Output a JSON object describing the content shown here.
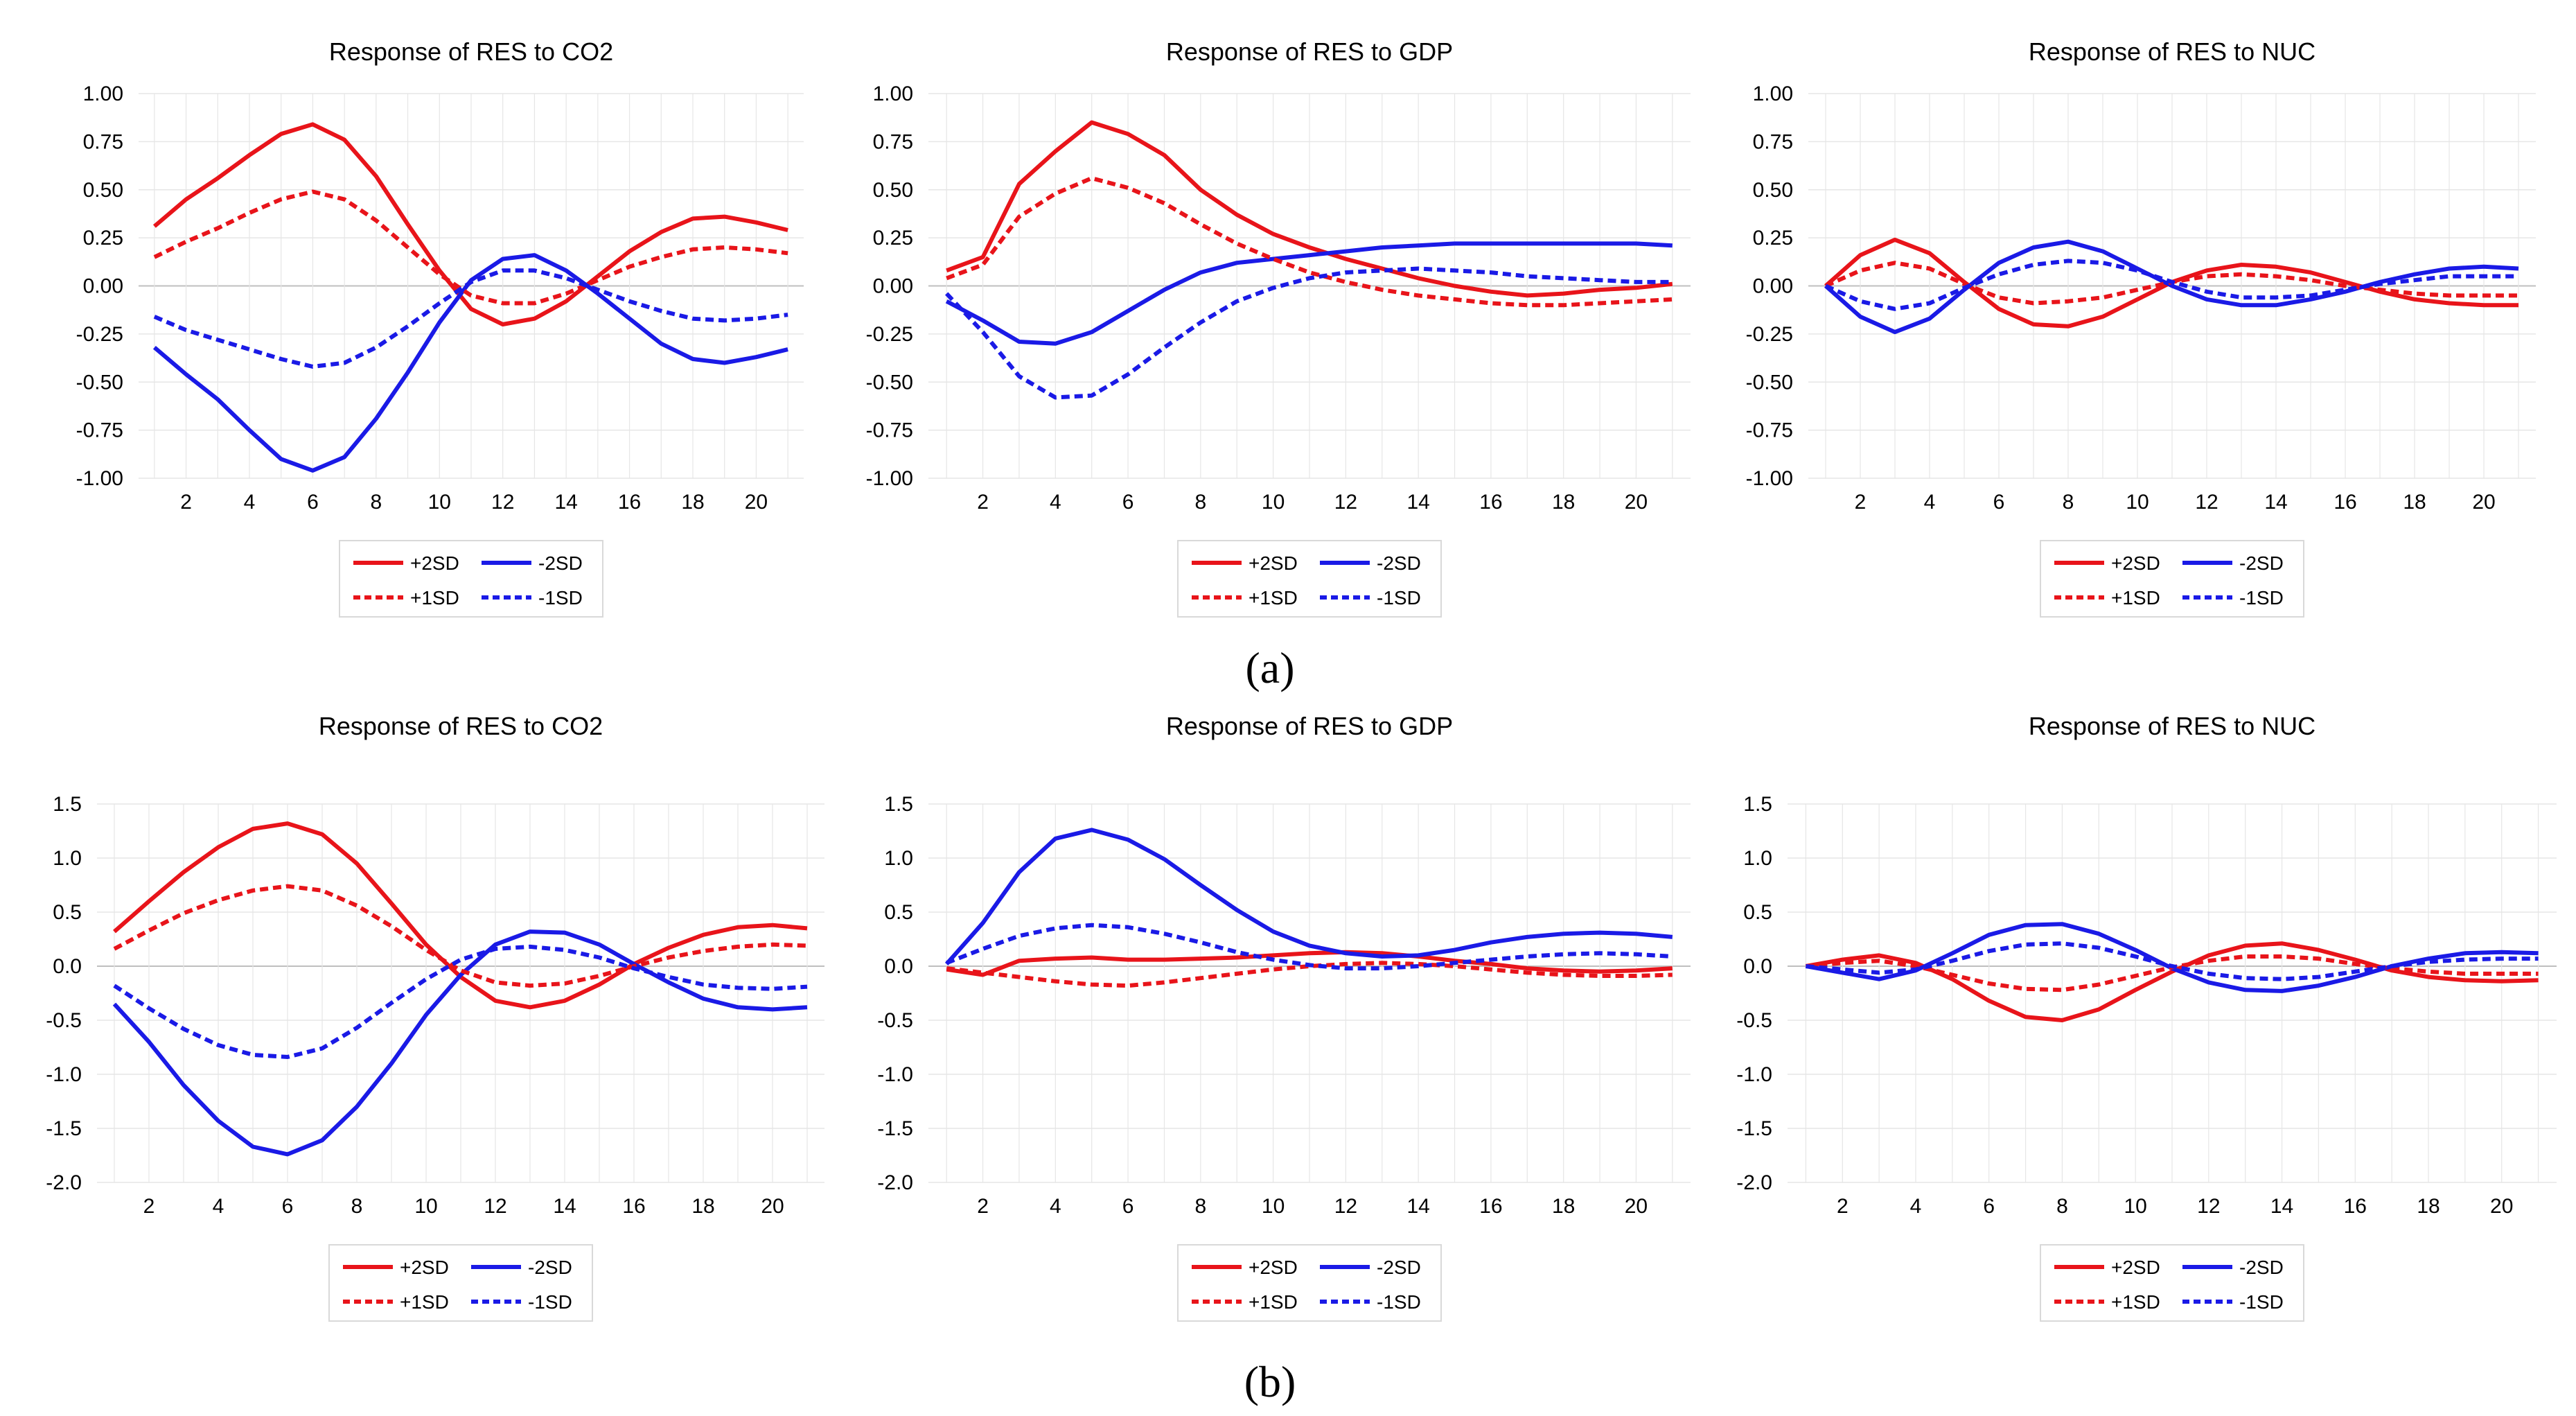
{
  "figure": {
    "panel_labels": [
      "(a)",
      "(b)"
    ]
  },
  "colors": {
    "positive": "#e8141a",
    "negative": "#1a1ae6",
    "grid": "#e6e6e6",
    "zero_line": "#bfbfbf",
    "legend_border": "#d9d9d9"
  },
  "chart_data": [
    {
      "id": "a1",
      "type": "line",
      "panel": "(a)",
      "title": "Response of RES to CO2",
      "ylim": [
        -1.0,
        1.0
      ],
      "yticks": [
        1.0,
        0.75,
        0.5,
        0.25,
        0.0,
        -0.25,
        -0.5,
        -0.75,
        -1.0
      ],
      "ytick_labels": [
        "1.00",
        "0.75",
        "0.50",
        "0.25",
        "0.00",
        "-0.25",
        "-0.50",
        "-0.75",
        "-1.00"
      ],
      "xlim": [
        1,
        21
      ],
      "xtick_labels": [
        "2",
        "4",
        "6",
        "8",
        "10",
        "12",
        "14",
        "16",
        "18",
        "20"
      ],
      "x": [
        1,
        2,
        3,
        4,
        5,
        6,
        7,
        8,
        9,
        10,
        11,
        12,
        13,
        14,
        15,
        16,
        17,
        18,
        19,
        20,
        21
      ],
      "series": [
        {
          "name": "+2SD",
          "color": "#e8141a",
          "dash": "solid",
          "values": [
            0.31,
            0.45,
            0.56,
            0.68,
            0.79,
            0.84,
            0.76,
            0.57,
            0.32,
            0.08,
            -0.12,
            -0.2,
            -0.17,
            -0.08,
            0.05,
            0.18,
            0.28,
            0.35,
            0.36,
            0.33,
            0.29
          ]
        },
        {
          "name": "-2SD",
          "color": "#1a1ae6",
          "dash": "solid",
          "values": [
            -0.32,
            -0.46,
            -0.59,
            -0.75,
            -0.9,
            -0.96,
            -0.89,
            -0.69,
            -0.45,
            -0.19,
            0.03,
            0.14,
            0.16,
            0.08,
            -0.04,
            -0.17,
            -0.3,
            -0.38,
            -0.4,
            -0.37,
            -0.33
          ]
        },
        {
          "name": "+1SD",
          "color": "#e8141a",
          "dash": "dashed",
          "values": [
            0.15,
            0.23,
            0.3,
            0.38,
            0.45,
            0.49,
            0.45,
            0.34,
            0.2,
            0.06,
            -0.05,
            -0.09,
            -0.09,
            -0.04,
            0.03,
            0.1,
            0.15,
            0.19,
            0.2,
            0.19,
            0.17
          ]
        },
        {
          "name": "-1SD",
          "color": "#1a1ae6",
          "dash": "dashed",
          "values": [
            -0.16,
            -0.23,
            -0.28,
            -0.33,
            -0.38,
            -0.42,
            -0.4,
            -0.32,
            -0.21,
            -0.09,
            0.02,
            0.08,
            0.08,
            0.04,
            -0.02,
            -0.08,
            -0.13,
            -0.17,
            -0.18,
            -0.17,
            -0.15
          ]
        }
      ]
    },
    {
      "id": "a2",
      "type": "line",
      "panel": "(a)",
      "title": "Response of RES to GDP",
      "ylim": [
        -1.0,
        1.0
      ],
      "yticks": [
        1.0,
        0.75,
        0.5,
        0.25,
        0.0,
        -0.25,
        -0.5,
        -0.75,
        -1.0
      ],
      "ytick_labels": [
        "1.00",
        "0.75",
        "0.50",
        "0.25",
        "0.00",
        "-0.25",
        "-0.50",
        "-0.75",
        "-1.00"
      ],
      "xlim": [
        1,
        21
      ],
      "xtick_labels": [
        "2",
        "4",
        "6",
        "8",
        "10",
        "12",
        "14",
        "16",
        "18",
        "20"
      ],
      "x": [
        1,
        2,
        3,
        4,
        5,
        6,
        7,
        8,
        9,
        10,
        11,
        12,
        13,
        14,
        15,
        16,
        17,
        18,
        19,
        20,
        21
      ],
      "series": [
        {
          "name": "+2SD",
          "color": "#e8141a",
          "dash": "solid",
          "values": [
            0.08,
            0.15,
            0.53,
            0.7,
            0.85,
            0.79,
            0.68,
            0.5,
            0.37,
            0.27,
            0.2,
            0.14,
            0.09,
            0.04,
            0.0,
            -0.03,
            -0.05,
            -0.04,
            -0.02,
            -0.01,
            0.01
          ]
        },
        {
          "name": "-2SD",
          "color": "#1a1ae6",
          "dash": "solid",
          "values": [
            -0.08,
            -0.18,
            -0.29,
            -0.3,
            -0.24,
            -0.13,
            -0.02,
            0.07,
            0.12,
            0.14,
            0.16,
            0.18,
            0.2,
            0.21,
            0.22,
            0.22,
            0.22,
            0.22,
            0.22,
            0.22,
            0.21
          ]
        },
        {
          "name": "+1SD",
          "color": "#e8141a",
          "dash": "dashed",
          "values": [
            0.04,
            0.11,
            0.36,
            0.48,
            0.56,
            0.51,
            0.43,
            0.32,
            0.22,
            0.14,
            0.07,
            0.02,
            -0.02,
            -0.05,
            -0.07,
            -0.09,
            -0.1,
            -0.1,
            -0.09,
            -0.08,
            -0.07
          ]
        },
        {
          "name": "-1SD",
          "color": "#1a1ae6",
          "dash": "dashed",
          "values": [
            -0.04,
            -0.24,
            -0.47,
            -0.58,
            -0.57,
            -0.46,
            -0.32,
            -0.19,
            -0.08,
            -0.01,
            0.04,
            0.07,
            0.08,
            0.09,
            0.08,
            0.07,
            0.05,
            0.04,
            0.03,
            0.02,
            0.02
          ]
        }
      ]
    },
    {
      "id": "a3",
      "type": "line",
      "panel": "(a)",
      "title": "Response of RES to NUC",
      "ylim": [
        -1.0,
        1.0
      ],
      "yticks": [
        1.0,
        0.75,
        0.5,
        0.25,
        0.0,
        -0.25,
        -0.5,
        -0.75,
        -1.0
      ],
      "ytick_labels": [
        "1.00",
        "0.75",
        "0.50",
        "0.25",
        "0.00",
        "-0.25",
        "-0.50",
        "-0.75",
        "-1.00"
      ],
      "xlim": [
        1,
        21
      ],
      "xtick_labels": [
        "2",
        "4",
        "6",
        "8",
        "10",
        "12",
        "14",
        "16",
        "18",
        "20"
      ],
      "x": [
        1,
        2,
        3,
        4,
        5,
        6,
        7,
        8,
        9,
        10,
        11,
        12,
        13,
        14,
        15,
        16,
        17,
        18,
        19,
        20,
        21
      ],
      "series": [
        {
          "name": "+2SD",
          "color": "#e8141a",
          "dash": "solid",
          "values": [
            0.0,
            0.16,
            0.24,
            0.17,
            0.02,
            -0.12,
            -0.2,
            -0.21,
            -0.16,
            -0.07,
            0.02,
            0.08,
            0.11,
            0.1,
            0.07,
            0.02,
            -0.03,
            -0.07,
            -0.09,
            -0.1,
            -0.1
          ]
        },
        {
          "name": "-2SD",
          "color": "#1a1ae6",
          "dash": "solid",
          "values": [
            0.0,
            -0.16,
            -0.24,
            -0.17,
            -0.02,
            0.12,
            0.2,
            0.23,
            0.18,
            0.09,
            0.0,
            -0.07,
            -0.1,
            -0.1,
            -0.07,
            -0.03,
            0.02,
            0.06,
            0.09,
            0.1,
            0.09
          ]
        },
        {
          "name": "+1SD",
          "color": "#e8141a",
          "dash": "dashed",
          "values": [
            0.0,
            0.08,
            0.12,
            0.09,
            0.01,
            -0.06,
            -0.09,
            -0.08,
            -0.06,
            -0.02,
            0.02,
            0.05,
            0.06,
            0.05,
            0.03,
            0.0,
            -0.02,
            -0.04,
            -0.05,
            -0.05,
            -0.05
          ]
        },
        {
          "name": "-1SD",
          "color": "#1a1ae6",
          "dash": "dashed",
          "values": [
            0.0,
            -0.08,
            -0.12,
            -0.09,
            -0.01,
            0.06,
            0.11,
            0.13,
            0.12,
            0.08,
            0.02,
            -0.03,
            -0.06,
            -0.06,
            -0.05,
            -0.02,
            0.01,
            0.03,
            0.05,
            0.05,
            0.05
          ]
        }
      ]
    },
    {
      "id": "b1",
      "type": "line",
      "panel": "(b)",
      "title": "Response of RES to CO2",
      "ylim": [
        -2.0,
        1.5
      ],
      "yticks": [
        1.5,
        1.0,
        0.5,
        0.0,
        -0.5,
        -1.0,
        -1.5,
        -2.0
      ],
      "ytick_labels": [
        "1.5",
        "1.0",
        "0.5",
        "0.0",
        "-0.5",
        "-1.0",
        "-1.5",
        "-2.0"
      ],
      "xlim": [
        1,
        21
      ],
      "xtick_labels": [
        "2",
        "4",
        "6",
        "8",
        "10",
        "12",
        "14",
        "16",
        "18",
        "20"
      ],
      "x": [
        1,
        2,
        3,
        4,
        5,
        6,
        7,
        8,
        9,
        10,
        11,
        12,
        13,
        14,
        15,
        16,
        17,
        18,
        19,
        20,
        21
      ],
      "series": [
        {
          "name": "+2SD",
          "color": "#e8141a",
          "dash": "solid",
          "values": [
            0.32,
            0.6,
            0.87,
            1.1,
            1.27,
            1.32,
            1.22,
            0.95,
            0.58,
            0.2,
            -0.1,
            -0.32,
            -0.38,
            -0.32,
            -0.17,
            0.02,
            0.17,
            0.29,
            0.36,
            0.38,
            0.35
          ]
        },
        {
          "name": "-2SD",
          "color": "#1a1ae6",
          "dash": "solid",
          "values": [
            -0.35,
            -0.7,
            -1.1,
            -1.43,
            -1.67,
            -1.74,
            -1.61,
            -1.3,
            -0.9,
            -0.45,
            -0.08,
            0.2,
            0.32,
            0.31,
            0.2,
            0.02,
            -0.15,
            -0.3,
            -0.38,
            -0.4,
            -0.38
          ]
        },
        {
          "name": "+1SD",
          "color": "#e8141a",
          "dash": "dashed",
          "values": [
            0.16,
            0.33,
            0.49,
            0.61,
            0.7,
            0.74,
            0.7,
            0.56,
            0.37,
            0.15,
            -0.04,
            -0.15,
            -0.18,
            -0.16,
            -0.09,
            0.0,
            0.08,
            0.14,
            0.18,
            0.2,
            0.19
          ]
        },
        {
          "name": "-1SD",
          "color": "#1a1ae6",
          "dash": "dashed",
          "values": [
            -0.18,
            -0.39,
            -0.58,
            -0.73,
            -0.82,
            -0.84,
            -0.76,
            -0.57,
            -0.34,
            -0.12,
            0.06,
            0.16,
            0.18,
            0.15,
            0.08,
            -0.02,
            -0.1,
            -0.17,
            -0.2,
            -0.21,
            -0.19
          ]
        }
      ]
    },
    {
      "id": "b2",
      "type": "line",
      "panel": "(b)",
      "title": "Response of RES to GDP",
      "ylim": [
        -2.0,
        1.5
      ],
      "yticks": [
        1.5,
        1.0,
        0.5,
        0.0,
        -0.5,
        -1.0,
        -1.5,
        -2.0
      ],
      "ytick_labels": [
        "1.5",
        "1.0",
        "0.5",
        "0.0",
        "-0.5",
        "-1.0",
        "-1.5",
        "-2.0"
      ],
      "xlim": [
        1,
        21
      ],
      "xtick_labels": [
        "2",
        "4",
        "6",
        "8",
        "10",
        "12",
        "14",
        "16",
        "18",
        "20"
      ],
      "x": [
        1,
        2,
        3,
        4,
        5,
        6,
        7,
        8,
        9,
        10,
        11,
        12,
        13,
        14,
        15,
        16,
        17,
        18,
        19,
        20,
        21
      ],
      "series": [
        {
          "name": "+2SD",
          "color": "#e8141a",
          "dash": "solid",
          "values": [
            -0.03,
            -0.08,
            0.05,
            0.07,
            0.08,
            0.06,
            0.06,
            0.07,
            0.08,
            0.1,
            0.12,
            0.13,
            0.12,
            0.09,
            0.05,
            0.02,
            -0.02,
            -0.04,
            -0.05,
            -0.04,
            -0.02
          ]
        },
        {
          "name": "-2SD",
          "color": "#1a1ae6",
          "dash": "solid",
          "values": [
            0.02,
            0.4,
            0.87,
            1.18,
            1.26,
            1.17,
            0.99,
            0.75,
            0.52,
            0.32,
            0.19,
            0.12,
            0.09,
            0.1,
            0.15,
            0.22,
            0.27,
            0.3,
            0.31,
            0.3,
            0.27
          ]
        },
        {
          "name": "+1SD",
          "color": "#e8141a",
          "dash": "dashed",
          "values": [
            -0.02,
            -0.06,
            -0.1,
            -0.14,
            -0.17,
            -0.18,
            -0.15,
            -0.11,
            -0.07,
            -0.03,
            0.0,
            0.02,
            0.03,
            0.02,
            0.0,
            -0.03,
            -0.06,
            -0.08,
            -0.09,
            -0.09,
            -0.08
          ]
        },
        {
          "name": "-1SD",
          "color": "#1a1ae6",
          "dash": "dashed",
          "values": [
            0.03,
            0.16,
            0.28,
            0.35,
            0.38,
            0.36,
            0.3,
            0.22,
            0.13,
            0.06,
            0.01,
            -0.02,
            -0.02,
            0.0,
            0.03,
            0.06,
            0.09,
            0.11,
            0.12,
            0.11,
            0.09
          ]
        }
      ]
    },
    {
      "id": "b3",
      "type": "line",
      "panel": "(b)",
      "title": "Response of RES to NUC",
      "ylim": [
        -2.0,
        1.5
      ],
      "yticks": [
        1.5,
        1.0,
        0.5,
        0.0,
        -0.5,
        -1.0,
        -1.5,
        -2.0
      ],
      "ytick_labels": [
        "1.5",
        "1.0",
        "0.5",
        "0.0",
        "-0.5",
        "-1.0",
        "-1.5",
        "-2.0"
      ],
      "xlim": [
        1,
        21
      ],
      "xtick_labels": [
        "2",
        "4",
        "6",
        "8",
        "10",
        "12",
        "14",
        "16",
        "18",
        "20"
      ],
      "x": [
        1,
        2,
        3,
        4,
        5,
        6,
        7,
        8,
        9,
        10,
        11,
        12,
        13,
        14,
        15,
        16,
        17,
        18,
        19,
        20,
        21
      ],
      "series": [
        {
          "name": "+2SD",
          "color": "#e8141a",
          "dash": "solid",
          "values": [
            0.0,
            0.06,
            0.1,
            0.03,
            -0.12,
            -0.32,
            -0.47,
            -0.5,
            -0.4,
            -0.22,
            -0.05,
            0.1,
            0.19,
            0.21,
            0.15,
            0.06,
            -0.04,
            -0.1,
            -0.13,
            -0.14,
            -0.13
          ]
        },
        {
          "name": "-2SD",
          "color": "#1a1ae6",
          "dash": "solid",
          "values": [
            0.0,
            -0.06,
            -0.12,
            -0.04,
            0.12,
            0.29,
            0.38,
            0.39,
            0.3,
            0.15,
            -0.02,
            -0.15,
            -0.22,
            -0.23,
            -0.18,
            -0.1,
            0.0,
            0.07,
            0.12,
            0.13,
            0.12
          ]
        },
        {
          "name": "+1SD",
          "color": "#e8141a",
          "dash": "dashed",
          "values": [
            0.0,
            0.03,
            0.05,
            0.0,
            -0.08,
            -0.16,
            -0.21,
            -0.22,
            -0.17,
            -0.09,
            -0.01,
            0.05,
            0.09,
            0.09,
            0.07,
            0.02,
            -0.02,
            -0.05,
            -0.07,
            -0.07,
            -0.07
          ]
        },
        {
          "name": "-1SD",
          "color": "#1a1ae6",
          "dash": "dashed",
          "values": [
            0.0,
            -0.03,
            -0.06,
            -0.03,
            0.05,
            0.14,
            0.2,
            0.21,
            0.17,
            0.09,
            0.0,
            -0.07,
            -0.11,
            -0.12,
            -0.1,
            -0.05,
            0.0,
            0.04,
            0.06,
            0.07,
            0.07
          ]
        }
      ]
    }
  ]
}
